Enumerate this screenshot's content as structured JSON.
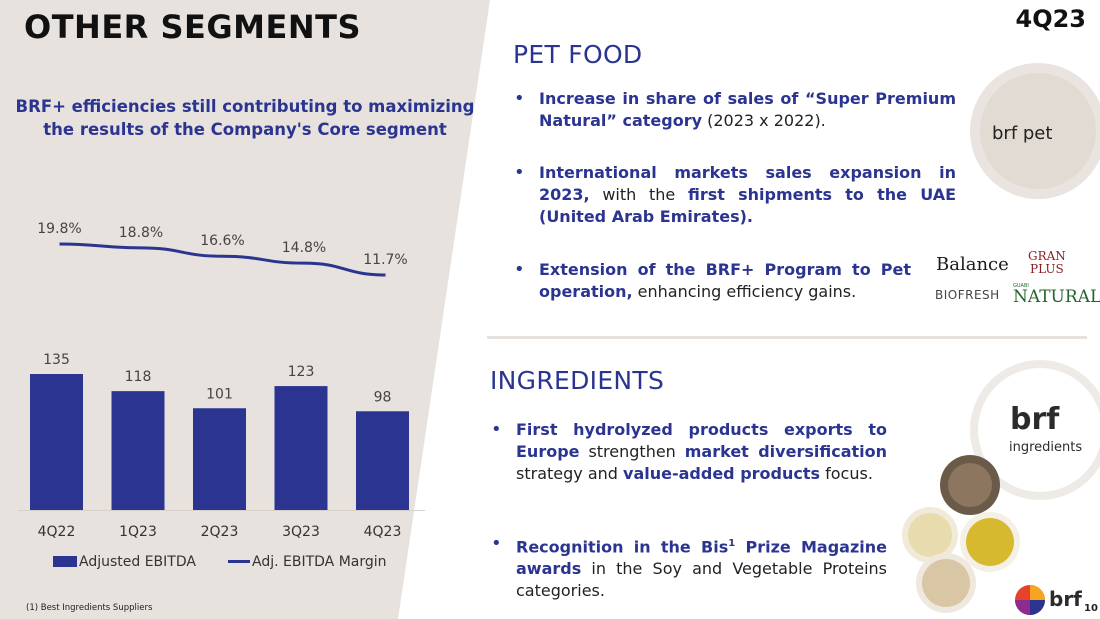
{
  "title": "OTHER SEGMENTS",
  "quarter": "4Q23",
  "page_number": "10",
  "subtitle_line1": "BRF+ efficiencies still contributing to maximizing",
  "subtitle_line2": "the results of the Company's Core segment",
  "footnote": "(1) Best Ingredients Suppliers",
  "pet_food": {
    "title": "PET FOOD",
    "b1_bold": "Increase in share of sales of “Super Premium Natural” category",
    "b1_rest": " (2023 x 2022).",
    "b2_bold1": "International markets sales expansion in 2023,",
    "b2_mid": " with the ",
    "b2_bold2": "first shipments to the UAE (United Arab Emirates).",
    "b3_bold": "Extension of the BRF+ Program to Pet operation,",
    "b3_rest": " enhancing efficiency gains.",
    "logo_text": "brf pet",
    "brands": {
      "balance": "Balance",
      "gran": "GRAN",
      "plus": "PLUS",
      "biofresh": "BIOFRESH",
      "guabi": "GUABI",
      "natural": "NATURAL"
    }
  },
  "ingredients": {
    "title": "INGREDIENTS",
    "b1_bold1": "First hydrolyzed products exports to Europe",
    "b1_mid1": " strengthen ",
    "b1_bold2": "market diversification",
    "b1_mid2": " strategy and ",
    "b1_bold3": "value-added products",
    "b1_rest": " focus.",
    "b2_bold1": "Recognition in the Bis",
    "b2_sup": "1",
    "b2_bold2": " Prize Magazine awards",
    "b2_rest": " in the Soy and Vegetable Proteins categories.",
    "logo_brf": "brf",
    "logo_sub": "ingredients"
  },
  "footer_logo": "brf",
  "colors": {
    "accent": "#2b3591",
    "left_panel": "#e7e2dd",
    "bar": "#2b3591"
  },
  "chart_data": {
    "type": "bar",
    "categories": [
      "4Q22",
      "1Q23",
      "2Q23",
      "3Q23",
      "4Q23"
    ],
    "series": [
      {
        "name": "Adjusted EBITDA",
        "kind": "bar",
        "values": [
          135,
          118,
          101,
          123,
          98
        ],
        "labels": [
          "135",
          "118",
          "101",
          "123",
          "98"
        ]
      },
      {
        "name": "Adj. EBITDA Margin",
        "kind": "line",
        "values": [
          19.8,
          18.8,
          16.6,
          14.8,
          11.7
        ],
        "labels": [
          "19.8%",
          "18.8%",
          "16.6%",
          "14.8%",
          "11.7%"
        ]
      }
    ],
    "bar_ylim": [
      0,
      135
    ],
    "line_ylim": [
      11.7,
      19.8
    ],
    "legend": [
      "Adjusted EBITDA",
      "Adj. EBITDA Margin"
    ],
    "legend_position": "bottom"
  }
}
